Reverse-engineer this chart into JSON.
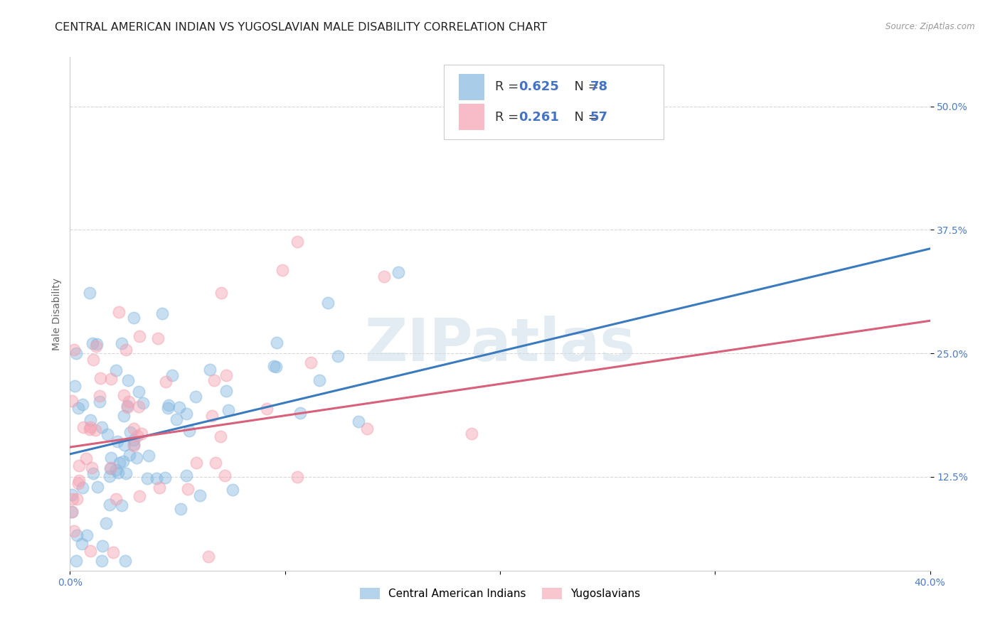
{
  "title": "CENTRAL AMERICAN INDIAN VS YUGOSLAVIAN MALE DISABILITY CORRELATION CHART",
  "source": "Source: ZipAtlas.com",
  "ylabel": "Male Disability",
  "ytick_labels": [
    "12.5%",
    "25.0%",
    "37.5%",
    "50.0%"
  ],
  "ytick_values": [
    0.125,
    0.25,
    0.375,
    0.5
  ],
  "xlim": [
    0.0,
    0.4
  ],
  "ylim": [
    0.03,
    0.55
  ],
  "blue_R": 0.625,
  "blue_N": 78,
  "pink_R": 0.261,
  "pink_N": 57,
  "blue_color": "#85b8e0",
  "pink_color": "#f4a0b0",
  "blue_line_color": "#3a7bbf",
  "pink_line_color": "#d9607a",
  "watermark": "ZIPatlas",
  "legend_label_blue": "Central American Indians",
  "legend_label_pink": "Yugoslavians",
  "grid_color": "#d8d8d8",
  "background_color": "#ffffff",
  "title_fontsize": 11.5,
  "axis_label_fontsize": 10,
  "tick_fontsize": 10,
  "blue_intercept": 0.148,
  "blue_slope": 0.52,
  "pink_intercept": 0.155,
  "pink_slope": 0.32
}
